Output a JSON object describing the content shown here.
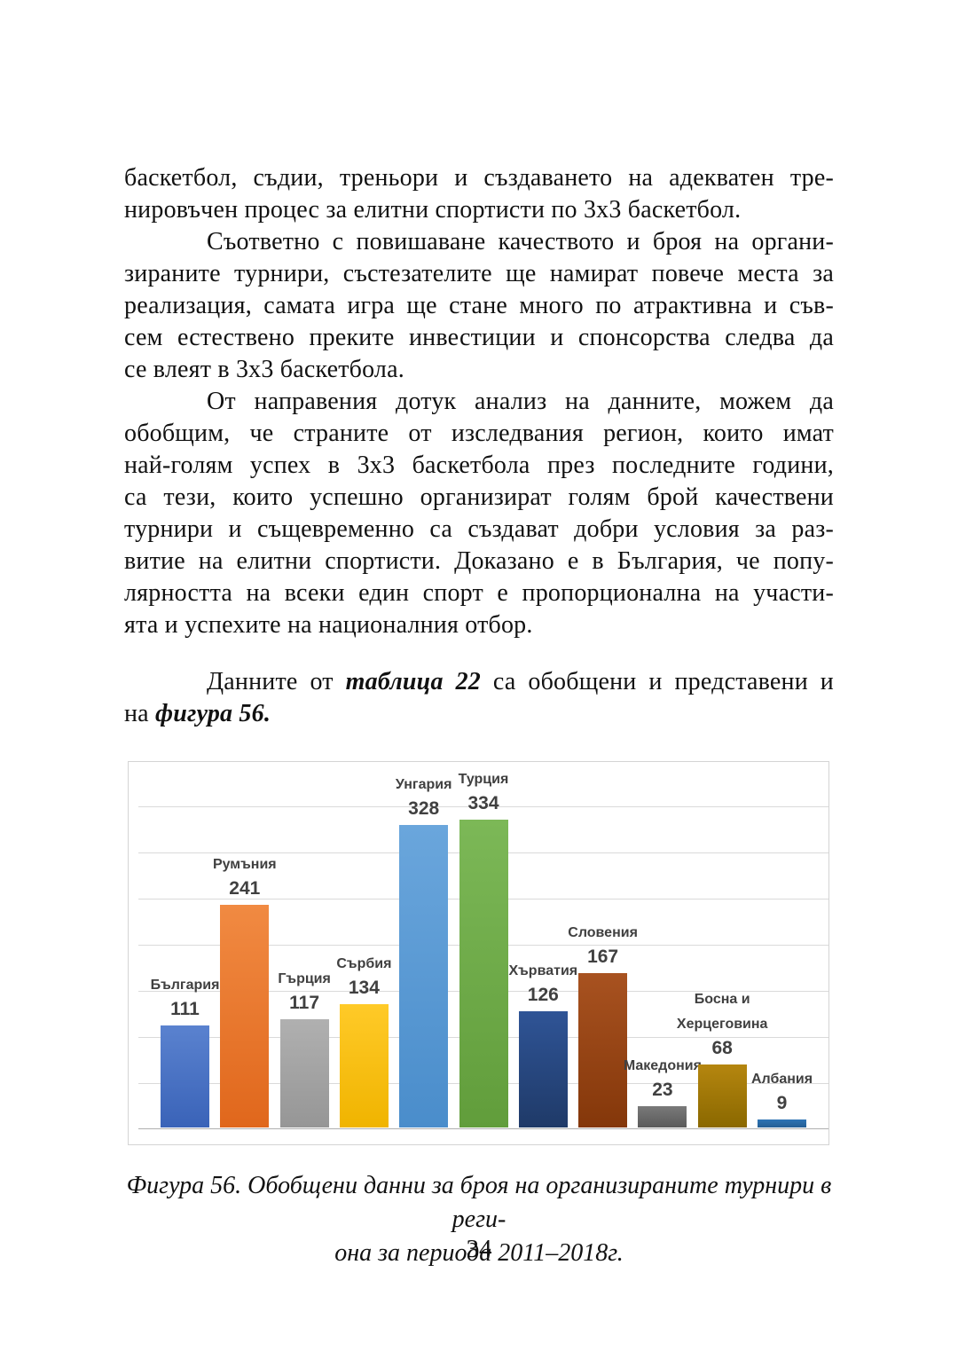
{
  "body": {
    "paragraphs": [
      {
        "indent": false,
        "space_before": false,
        "lines": [
          [
            {
              "t": "баскетбол, съдии, треньори и създаването на адекватен тре-"
            }
          ],
          [
            {
              "t": "нировъчен процес за елитни спортисти по 3х3 баскетбол."
            }
          ]
        ]
      },
      {
        "indent": true,
        "space_before": false,
        "lines": [
          [
            {
              "t": "Съответно с повишаване качеството и броя на органи-"
            }
          ],
          [
            {
              "t": "зираните турнири, състезателите ще намират повече места за"
            }
          ],
          [
            {
              "t": "реализация, самата игра ще стане много по атрактивна и съв-"
            }
          ],
          [
            {
              "t": "сем естествено преките инвестиции и спонсорства следва да"
            }
          ],
          [
            {
              "t": "се влеят в 3х3 баскетбола."
            }
          ]
        ]
      },
      {
        "indent": true,
        "space_before": false,
        "lines": [
          [
            {
              "t": "От направения дотук анализ на данните, можем да"
            }
          ],
          [
            {
              "t": "обобщим, че страните от изследвания регион, които имат"
            }
          ],
          [
            {
              "t": "най-голям успех в 3х3 баскетбола през последните години,"
            }
          ],
          [
            {
              "t": "са тези, които успешно организират голям брой качествени"
            }
          ],
          [
            {
              "t": "турнири и същевременно са създават добри условия за раз-"
            }
          ],
          [
            {
              "t": "витие на елитни спортисти. Доказано е в България, че попу-"
            }
          ],
          [
            {
              "t": "лярността на всеки един спорт е пропорционална на участи-"
            }
          ],
          [
            {
              "t": "ята и успехите на националния отбор."
            }
          ]
        ]
      },
      {
        "indent": true,
        "space_before": true,
        "lines": [
          [
            {
              "t": "Данните от "
            },
            {
              "t": "таблица 22",
              "bi": true
            },
            {
              "t": " са обобщени и представени и"
            }
          ],
          [
            {
              "t": "на "
            },
            {
              "t": "фигура 56.",
              "bi": true
            }
          ]
        ]
      }
    ]
  },
  "chart_data": {
    "type": "bar",
    "title": "",
    "xlabel": "",
    "ylabel": "",
    "categories": [
      "България",
      "Румъния",
      "Гърция",
      "Сърбия",
      "Унгария",
      "Турция",
      "Хърватия",
      "Словения",
      "Македония",
      "Босна и Херцеговина",
      "Албания"
    ],
    "values": [
      111,
      241,
      117,
      134,
      328,
      334,
      126,
      167,
      23,
      68,
      9
    ],
    "label_lines": [
      [
        "България"
      ],
      [
        "Румъния"
      ],
      [
        "Гърция"
      ],
      [
        "Сърбия"
      ],
      [
        "Унгария"
      ],
      [
        "Турция"
      ],
      [
        "Хърватия"
      ],
      [
        "Словения"
      ],
      [
        "Македония"
      ],
      [
        "Босна и",
        "Херцеговина"
      ],
      [
        "Албания"
      ]
    ],
    "bar_colors": [
      {
        "top": "#5a82cf",
        "bottom": "#3a63b8"
      },
      {
        "top": "#f18a42",
        "bottom": "#e0671c"
      },
      {
        "top": "#b0b0b0",
        "bottom": "#969696"
      },
      {
        "top": "#ffca28",
        "bottom": "#f0b400"
      },
      {
        "top": "#6aa6dc",
        "bottom": "#4a8dcb"
      },
      {
        "top": "#7cb857",
        "bottom": "#619d3b"
      },
      {
        "top": "#2f5496",
        "bottom": "#1f3a68"
      },
      {
        "top": "#a85220",
        "bottom": "#84370a"
      },
      {
        "top": "#7a7a7a",
        "bottom": "#5a5a5a"
      },
      {
        "top": "#b5860f",
        "bottom": "#8a6800"
      },
      {
        "top": "#2e74b5",
        "bottom": "#255e94"
      }
    ],
    "ylim": [
      0,
      350
    ],
    "gridline_step": 50,
    "grid": true,
    "legend": "none",
    "data_labels": true,
    "label_color": "#404040"
  },
  "caption": {
    "line1": "Фигура 56. Обобщени данни за броя на организираните турнири в реги-",
    "line2": "она за периода 2011–2018г."
  },
  "page_number": "34"
}
